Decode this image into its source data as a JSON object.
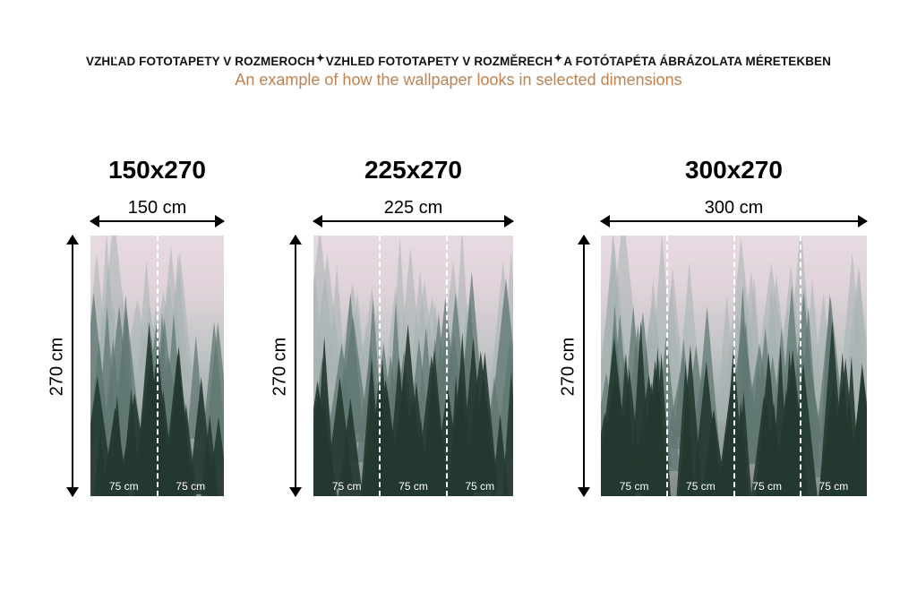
{
  "header": {
    "titles": [
      "VZHĽAD FOTOTAPETY V ROZMEROCH",
      "VZHLED FOTOTAPETY V ROZMĚRECH",
      "A FOTÓTAPÉTA ÁBRÁZOLATA MÉRETEKBEN"
    ],
    "separator_icon": "sparkle-star-icon",
    "subtitle": "An example of how the wallpaper looks in selected dimensions",
    "subtitle_color": "#c0814f"
  },
  "variants": [
    {
      "title": "150x270",
      "width_label": "150 cm",
      "height_label": "270 cm",
      "strips": [
        "75 cm",
        "75 cm"
      ]
    },
    {
      "title": "225x270",
      "width_label": "225 cm",
      "height_label": "270 cm",
      "strips": [
        "75 cm",
        "75 cm",
        "75 cm"
      ]
    },
    {
      "title": "300x270",
      "width_label": "300 cm",
      "height_label": "270 cm",
      "strips": [
        "75 cm",
        "75 cm",
        "75 cm",
        "75 cm"
      ]
    }
  ]
}
